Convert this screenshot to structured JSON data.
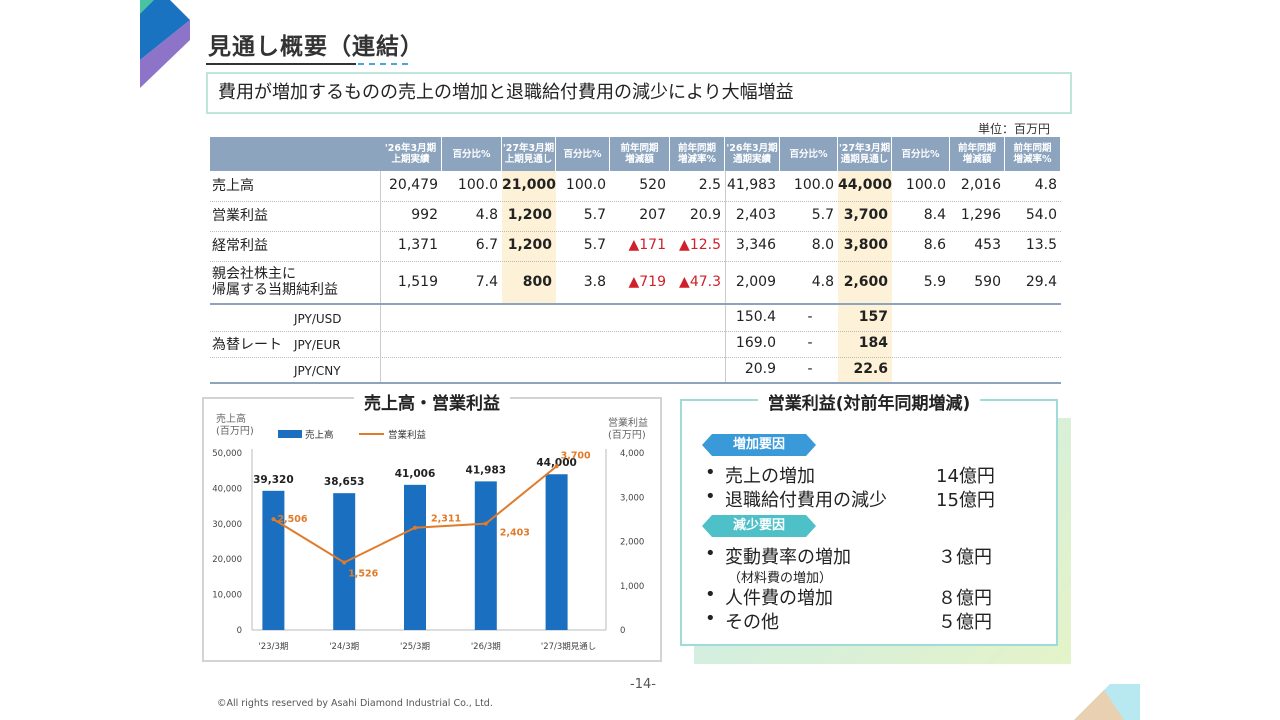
{
  "page": {
    "title": "見通し概要（連結）",
    "subtitle": "費用が増加するものの売上の増加と退職給付費用の減少により大幅増益",
    "unit": "単位：百万円",
    "page_number": "-14-",
    "copyright": "©All rights reserved by Asahi Diamond Industrial Co., Ltd."
  },
  "colors": {
    "header_bg": "#8da4bf",
    "highlight": "#fdf2d8",
    "bar": "#1a6fc0",
    "line": "#e07b2a",
    "negative": "#d0202a"
  },
  "table": {
    "headers": [
      "'26年3月期\n上期実績",
      "百分比%",
      "'27年3月期\n上期見通し",
      "百分比%",
      "前年同期\n増減額",
      "前年同期\n増減率%",
      "'26年3月期\n通期実績",
      "百分比%",
      "'27年3月期\n通期見通し",
      "百分比%",
      "前年同期\n増減額",
      "前年同期\n増減率%"
    ],
    "rows": [
      {
        "label": "売上高",
        "cells": [
          "20,479",
          "100.0",
          "21,000",
          "100.0",
          "520",
          "2.5",
          "41,983",
          "100.0",
          "44,000",
          "100.0",
          "2,016",
          "4.8"
        ]
      },
      {
        "label": "営業利益",
        "cells": [
          "992",
          "4.8",
          "1,200",
          "5.7",
          "207",
          "20.9",
          "2,403",
          "5.7",
          "3,700",
          "8.4",
          "1,296",
          "54.0"
        ]
      },
      {
        "label": "経常利益",
        "cells": [
          "1,371",
          "6.7",
          "1,200",
          "5.7",
          "▲171",
          "▲12.5",
          "3,346",
          "8.0",
          "3,800",
          "8.6",
          "453",
          "13.5"
        ]
      },
      {
        "label": "親会社株主に\n帰属する当期純利益",
        "cells": [
          "1,519",
          "7.4",
          "800",
          "3.8",
          "▲719",
          "▲47.3",
          "2,009",
          "4.8",
          "2,600",
          "5.9",
          "590",
          "29.4"
        ]
      }
    ],
    "fx_label": "為替レート",
    "fx_rows": [
      {
        "pair": "JPY/USD",
        "actual": "150.4",
        "pct": "-",
        "forecast": "157"
      },
      {
        "pair": "JPY/EUR",
        "actual": "169.0",
        "pct": "-",
        "forecast": "184"
      },
      {
        "pair": "JPY/CNY",
        "actual": "20.9",
        "pct": "-",
        "forecast": "22.6"
      }
    ]
  },
  "op_panel": {
    "title": "営業利益(対前年同期増減)",
    "increase_tag": "増加要因",
    "decrease_tag": "減少要因",
    "increase_items": [
      {
        "label": "売上の増加",
        "amount": "14億円"
      },
      {
        "label": "退職給付費用の減少",
        "amount": "15億円"
      }
    ],
    "decrease_items": [
      {
        "label": "変動費率の増加",
        "amount": "３億円",
        "note": "（材料費の増加）"
      },
      {
        "label": "人件費の増加",
        "amount": "８億円"
      },
      {
        "label": "その他",
        "amount": "５億円"
      }
    ]
  },
  "chart_data": {
    "type": "bar",
    "title": "売上高・営業利益",
    "ylabel_left": "売上高\n(百万円)",
    "ylabel_right": "営業利益\n(百万円)",
    "categories": [
      "'23/3期",
      "'24/3期",
      "'25/3期",
      "'26/3期",
      "'27/3期見通し"
    ],
    "ylim_left": [
      0,
      50000
    ],
    "ylim_right": [
      0,
      4000
    ],
    "yticks_left": [
      "0",
      "10,000",
      "20,000",
      "30,000",
      "40,000",
      "50,000"
    ],
    "yticks_right": [
      "0",
      "1,000",
      "2,000",
      "3,000",
      "4,000"
    ],
    "series": [
      {
        "name": "売上高",
        "type": "bar",
        "axis": "left",
        "values": [
          39320,
          38653,
          41006,
          41983,
          44000
        ],
        "labels": [
          "39,320",
          "38,653",
          "41,006",
          "41,983",
          "44,000"
        ]
      },
      {
        "name": "営業利益",
        "type": "line",
        "axis": "right",
        "values": [
          2506,
          1526,
          2311,
          2403,
          3700
        ],
        "labels": [
          "2,506",
          "1,526",
          "2,311",
          "2,403",
          "3,700"
        ]
      }
    ],
    "legend_position": "top-left"
  }
}
